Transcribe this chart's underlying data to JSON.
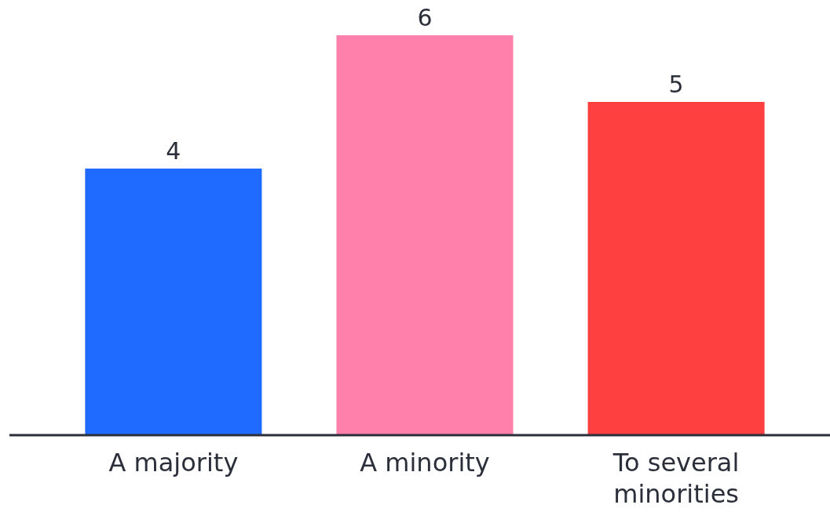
{
  "chart_data": {
    "type": "bar",
    "categories": [
      "A majority",
      "A minority",
      "To several minorities"
    ],
    "values": [
      4,
      6,
      5
    ],
    "colors": [
      "#1f6bff",
      "#ff80aa",
      "#ff4040"
    ],
    "data_labels": true
  }
}
